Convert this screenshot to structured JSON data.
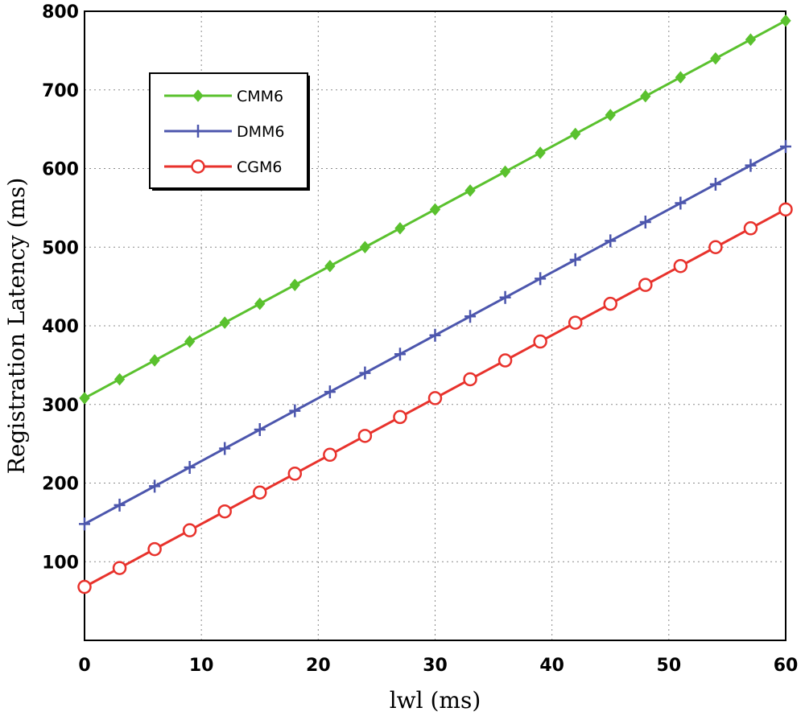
{
  "chart_data": {
    "type": "line",
    "title": "",
    "xlabel": "lwl (ms)",
    "ylabel": "Registration Latency (ms)",
    "xlim": [
      0,
      60
    ],
    "ylim": [
      0,
      800
    ],
    "xticks": [
      0,
      10,
      20,
      30,
      40,
      50,
      60
    ],
    "yticks": [
      100,
      200,
      300,
      400,
      500,
      600,
      700,
      800
    ],
    "grid": true,
    "legend_position": "top-left",
    "x": [
      0,
      3,
      6,
      9,
      12,
      15,
      18,
      21,
      24,
      27,
      30,
      33,
      36,
      39,
      42,
      45,
      48,
      51,
      54,
      57,
      60
    ],
    "series": [
      {
        "name": "CMM6",
        "color": "#5ac12e",
        "marker": "diamond",
        "values": [
          308,
          332,
          356,
          380,
          404,
          428,
          452,
          476,
          500,
          524,
          548,
          572,
          596,
          620,
          644,
          668,
          692,
          716,
          740,
          764,
          788
        ]
      },
      {
        "name": "DMM6",
        "color": "#4c56ad",
        "marker": "plus",
        "values": [
          148,
          172,
          196,
          220,
          244,
          268,
          292,
          316,
          340,
          364,
          388,
          412,
          436,
          460,
          484,
          508,
          532,
          556,
          580,
          604,
          628
        ]
      },
      {
        "name": "CGM6",
        "color": "#e8322c",
        "marker": "circle",
        "values": [
          68,
          92,
          116,
          140,
          164,
          188,
          212,
          236,
          260,
          284,
          308,
          332,
          356,
          380,
          404,
          428,
          452,
          476,
          500,
          524,
          548
        ]
      }
    ]
  }
}
